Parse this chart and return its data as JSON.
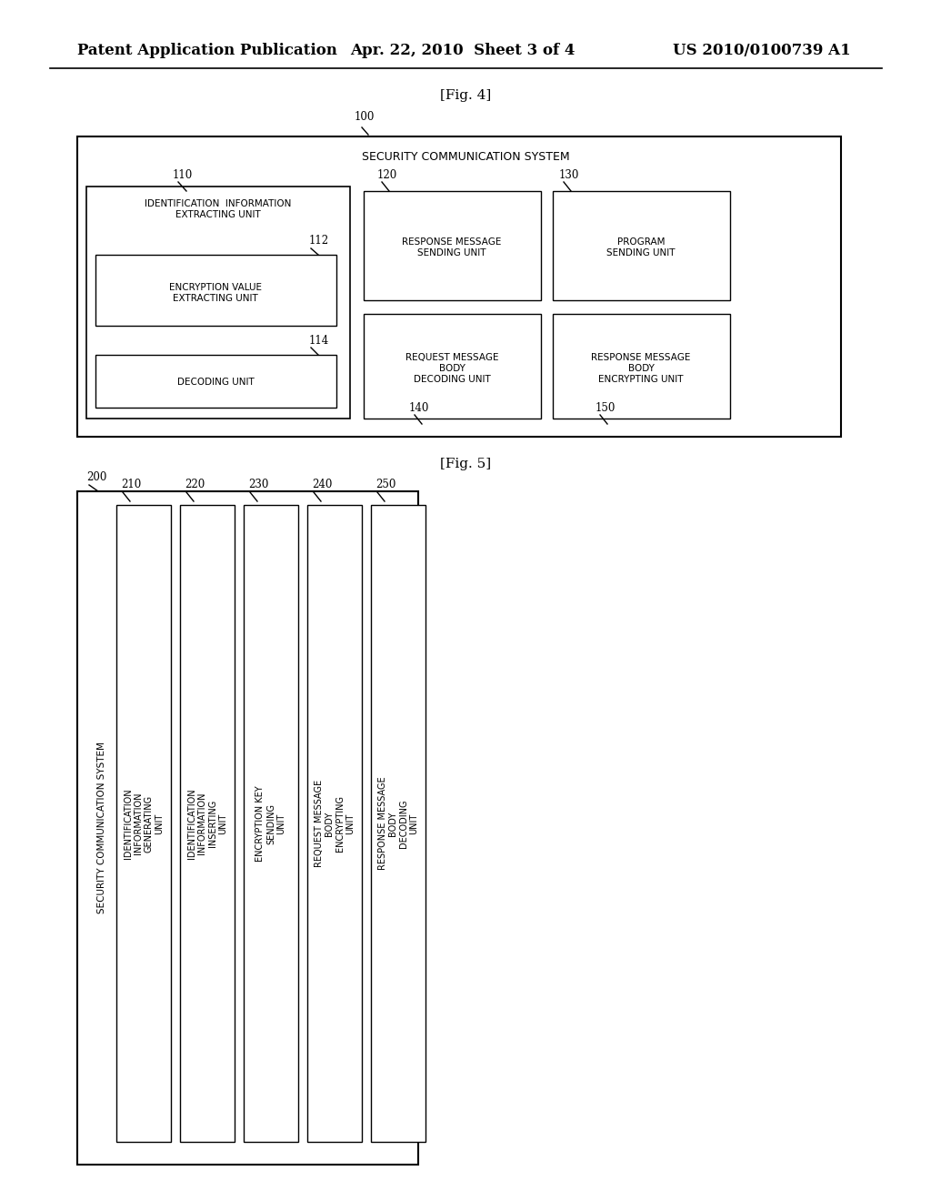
{
  "background_color": "#ffffff",
  "header_left": "Patent Application Publication",
  "header_mid": "Apr. 22, 2010  Sheet 3 of 4",
  "header_right": "US 2010/0100739 A1",
  "fig4_label": "[Fig. 4]",
  "fig5_label": "[Fig. 5]",
  "fig4_ref": "100",
  "fig4_system_title": "SECURITY COMMUNICATION SYSTEM",
  "fig5_ref": "200",
  "fig5_system_title": "SECURITY COMMUNICATION SYSTEM",
  "font_size_header": 12,
  "font_size_label": 9,
  "font_size_box": 7.5,
  "font_size_ref": 8.5
}
